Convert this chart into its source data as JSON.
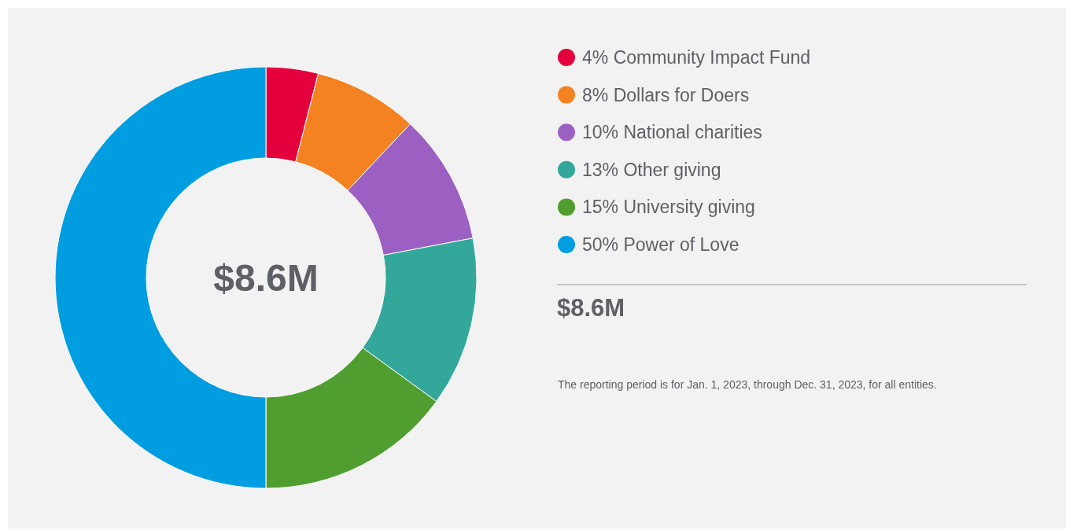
{
  "chart_data": {
    "type": "donut",
    "title": "$8.6M",
    "categories": [
      "Community Impact Fund",
      "Dollars for Doers",
      "National charities",
      "Other giving",
      "University giving",
      "Power of Love"
    ],
    "values": [
      4,
      8,
      10,
      13,
      15,
      50
    ],
    "value_labels": [
      "4%",
      "8%",
      "10%",
      "13%",
      "15%",
      "50%"
    ],
    "colors": [
      "#e4003d",
      "#f58220",
      "#9c5fc2",
      "#33a89a",
      "#509e2f",
      "#009ee0"
    ],
    "legend": "right",
    "annotations": [
      "$8.6M",
      "The reporting period is for Jan. 1, 2023, through Dec. 31, 2023, for all entities."
    ]
  }
}
